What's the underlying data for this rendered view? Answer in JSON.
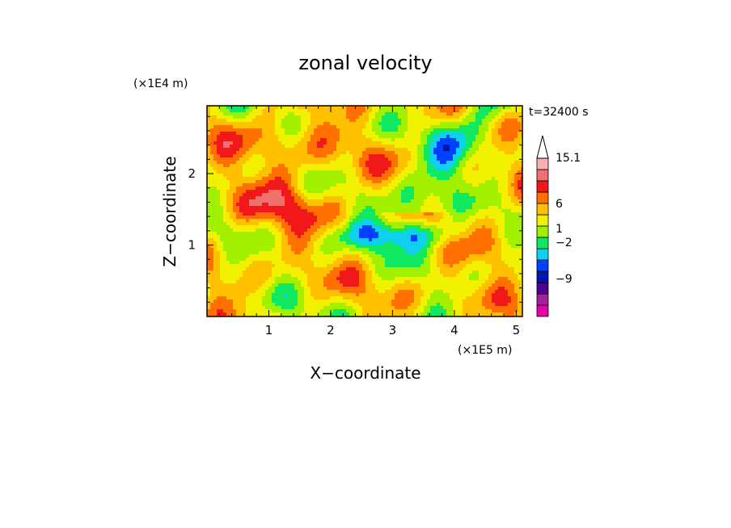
{
  "chart_data": {
    "type": "heatmap",
    "title": "zonal velocity",
    "xlabel": "X−coordinate",
    "ylabel": "Z−coordinate",
    "x_unit": "(×1E5 m)",
    "y_unit": "(×1E4 m)",
    "time_label": "t=32400 s",
    "xlim": [
      0,
      5.1
    ],
    "ylim": [
      0,
      2.95
    ],
    "x_ticks": [
      1,
      2,
      3,
      4,
      5
    ],
    "y_ticks": [
      1,
      2
    ],
    "colorbar": {
      "levels": [
        "#e800a8",
        "#a020a0",
        "#500090",
        "#0018b0",
        "#0040ff",
        "#10d0f0",
        "#10e860",
        "#a0f000",
        "#f0f000",
        "#ffc000",
        "#ff7000",
        "#f01818",
        "#f07070",
        "#f8b0b0"
      ],
      "labels": [
        "15.1",
        "6",
        "1",
        "−2",
        "−9"
      ],
      "label_values": [
        15.1,
        6,
        1,
        -2,
        -9
      ]
    }
  }
}
